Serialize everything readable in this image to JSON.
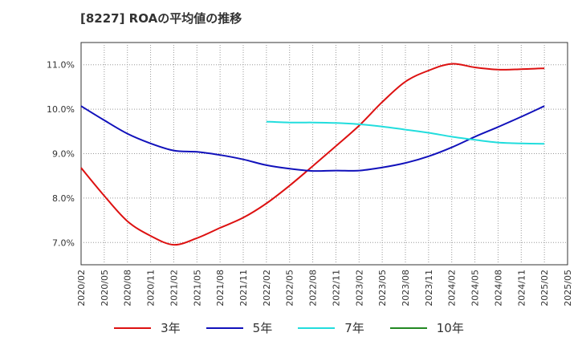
{
  "title": "[8227]  ROAの平均値の推移",
  "chart_data": {
    "type": "line",
    "title": "[8227]  ROAの平均値の推移",
    "xlabel": "",
    "ylabel": "",
    "x_ticks": [
      "2020/02",
      "2020/05",
      "2020/08",
      "2020/11",
      "2021/02",
      "2021/05",
      "2021/08",
      "2021/11",
      "2022/02",
      "2022/05",
      "2022/08",
      "2022/11",
      "2023/02",
      "2023/05",
      "2023/08",
      "2023/11",
      "2024/02",
      "2024/05",
      "2024/08",
      "2024/11",
      "2025/02",
      "2025/05"
    ],
    "y_ticks": [
      "7.0%",
      "8.0%",
      "9.0%",
      "10.0%",
      "11.0%"
    ],
    "y_tick_values": [
      7.0,
      8.0,
      9.0,
      10.0,
      11.0
    ],
    "ylim": [
      6.5,
      11.5
    ],
    "grid": true,
    "legend_position": "bottom",
    "series": [
      {
        "name": "3年",
        "color": "#dd1111",
        "x": [
          "2020/02",
          "2020/05",
          "2020/08",
          "2020/11",
          "2021/02",
          "2021/05",
          "2021/08",
          "2021/11",
          "2022/02",
          "2022/05",
          "2022/08",
          "2022/11",
          "2023/02",
          "2023/05",
          "2023/08",
          "2023/11",
          "2024/02",
          "2024/05",
          "2024/08",
          "2024/11",
          "2025/02"
        ],
        "values": [
          8.68,
          8.05,
          7.48,
          7.15,
          6.95,
          7.1,
          7.33,
          7.56,
          7.88,
          8.28,
          8.72,
          9.17,
          9.63,
          10.16,
          10.62,
          10.87,
          11.02,
          10.94,
          10.89,
          10.9,
          10.92
        ]
      },
      {
        "name": "5年",
        "color": "#1111bb",
        "x": [
          "2020/02",
          "2020/05",
          "2020/08",
          "2020/11",
          "2021/02",
          "2021/05",
          "2021/08",
          "2021/11",
          "2022/02",
          "2022/05",
          "2022/08",
          "2022/11",
          "2023/02",
          "2023/05",
          "2023/08",
          "2023/11",
          "2024/02",
          "2024/05",
          "2024/08",
          "2024/11",
          "2025/02"
        ],
        "values": [
          10.07,
          9.75,
          9.45,
          9.23,
          9.07,
          9.04,
          8.97,
          8.87,
          8.74,
          8.66,
          8.61,
          8.62,
          8.62,
          8.69,
          8.79,
          8.94,
          9.14,
          9.38,
          9.6,
          9.83,
          10.07
        ]
      },
      {
        "name": "7年",
        "color": "#22dddd",
        "x": [
          "2022/02",
          "2022/05",
          "2022/08",
          "2022/11",
          "2023/02",
          "2023/05",
          "2023/08",
          "2023/11",
          "2024/02",
          "2024/05",
          "2024/08",
          "2024/11",
          "2025/02"
        ],
        "values": [
          9.72,
          9.7,
          9.7,
          9.69,
          9.66,
          9.61,
          9.54,
          9.47,
          9.38,
          9.31,
          9.25,
          9.23,
          9.22
        ]
      },
      {
        "name": "10年",
        "color": "#228822",
        "x": [],
        "values": []
      }
    ]
  }
}
